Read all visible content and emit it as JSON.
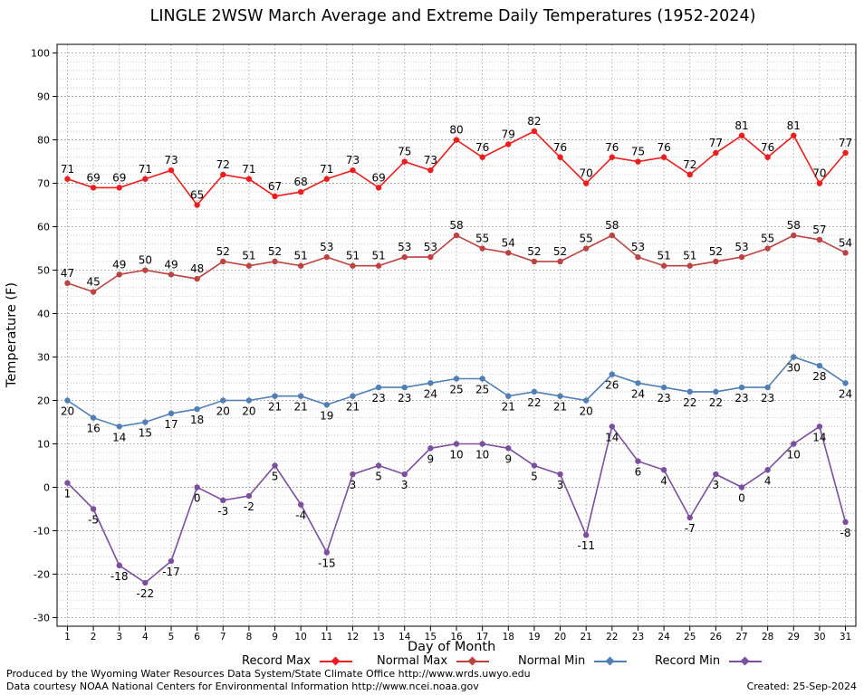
{
  "title": "LINGLE 2WSW March Average and Extreme Daily Temperatures (1952-2024)",
  "credit_line_1": "Produced by the Wyoming Water Resources Data System/State Climate Office http://www.wrds.uwyo.edu",
  "credit_line_2": "Data courtesy NOAA National Centers for Environmental Information http://www.ncei.noaa.gov",
  "created": "Created:  25-Sep-2024",
  "chart_data": {
    "type": "line",
    "title": "LINGLE 2WSW March Average and Extreme Daily Temperatures (1952-2024)",
    "xlabel": "Day of Month",
    "ylabel": "Temperature (F)",
    "xlim": [
      0.6,
      31.4
    ],
    "ylim": [
      -32,
      102
    ],
    "yticks": [
      -30,
      -20,
      -10,
      0,
      10,
      20,
      30,
      40,
      50,
      60,
      70,
      80,
      90,
      100
    ],
    "grid": true,
    "legend_position": "bottom",
    "x": [
      1,
      2,
      3,
      4,
      5,
      6,
      7,
      8,
      9,
      10,
      11,
      12,
      13,
      14,
      15,
      16,
      17,
      18,
      19,
      20,
      21,
      22,
      23,
      24,
      25,
      26,
      27,
      28,
      29,
      30,
      31
    ],
    "series": [
      {
        "name": "Record Max",
        "color": "#ee1c1c",
        "label_pos": "above",
        "values": [
          71,
          69,
          69,
          71,
          73,
          65,
          72,
          71,
          67,
          68,
          71,
          73,
          69,
          75,
          73,
          80,
          76,
          79,
          82,
          76,
          70,
          76,
          75,
          76,
          72,
          77,
          81,
          76,
          81,
          70,
          77
        ]
      },
      {
        "name": "Normal Max",
        "color": "#bd4242",
        "label_pos": "above",
        "values": [
          47,
          45,
          49,
          50,
          49,
          48,
          52,
          51,
          52,
          51,
          53,
          51,
          51,
          53,
          53,
          58,
          55,
          54,
          52,
          52,
          55,
          58,
          53,
          51,
          51,
          52,
          53,
          55,
          58,
          57,
          54
        ]
      },
      {
        "name": "Normal Min",
        "color": "#4f7fb5",
        "label_pos": "below",
        "values": [
          20,
          16,
          14,
          15,
          17,
          18,
          20,
          20,
          21,
          21,
          19,
          21,
          23,
          23,
          24,
          25,
          25,
          21,
          22,
          21,
          20,
          26,
          24,
          23,
          22,
          22,
          23,
          23,
          30,
          28,
          24
        ]
      },
      {
        "name": "Record Min",
        "color": "#7b4ea0",
        "label_pos": "below",
        "values": [
          1,
          -5,
          -18,
          -22,
          -17,
          0,
          -3,
          -2,
          5,
          -4,
          -15,
          3,
          5,
          3,
          9,
          10,
          10,
          9,
          5,
          3,
          -11,
          14,
          6,
          4,
          -7,
          3,
          0,
          4,
          10,
          14,
          -8
        ]
      }
    ]
  }
}
